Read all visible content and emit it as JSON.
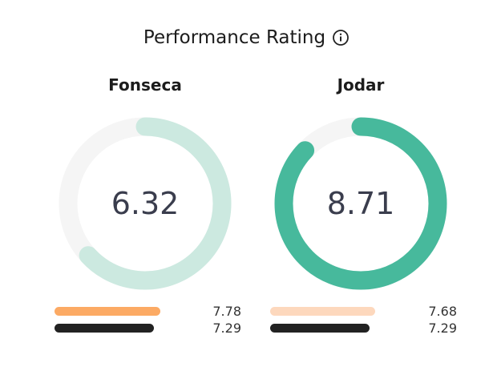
{
  "header": {
    "title": "Performance Rating"
  },
  "players": [
    {
      "name": "Fonseca",
      "rating": "6.32",
      "rating_fraction": 0.632,
      "gauge_color": "#cce9e0",
      "track_color": "#f5f5f5",
      "bars": [
        {
          "value": "7.78",
          "fraction": 0.778,
          "color": "#fcaa64"
        },
        {
          "value": "7.29",
          "fraction": 0.729,
          "color": "#222222"
        }
      ]
    },
    {
      "name": "Jodar",
      "rating": "8.71",
      "rating_fraction": 0.871,
      "gauge_color": "#47b99c",
      "track_color": "#f5f5f5",
      "bars": [
        {
          "value": "7.68",
          "fraction": 0.768,
          "color": "#fdd8bd"
        },
        {
          "value": "7.29",
          "fraction": 0.729,
          "color": "#222222"
        }
      ]
    }
  ]
}
